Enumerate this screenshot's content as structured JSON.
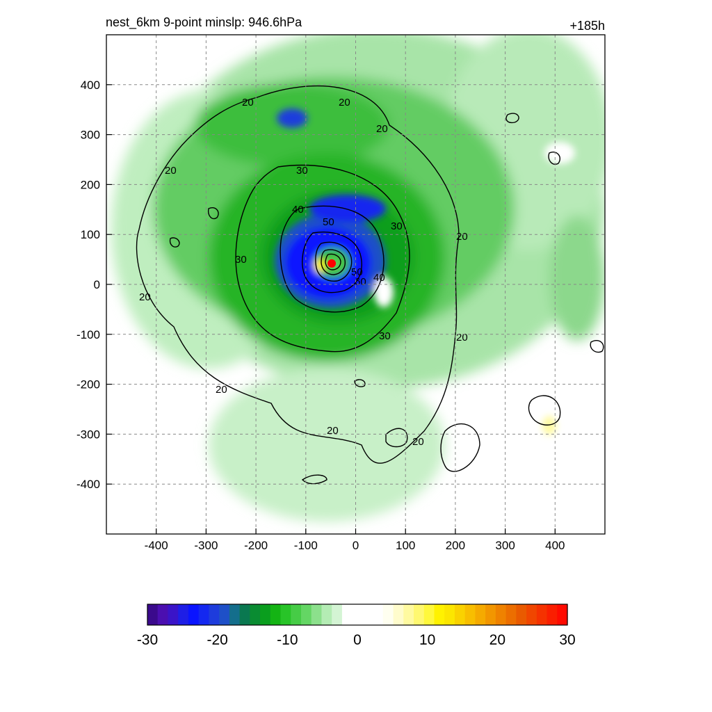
{
  "figure": {
    "title_left": "nest_6km  9-point minslp: 946.6hPa",
    "title_right": "+185h"
  },
  "chart_data": {
    "type": "heatmap",
    "x_ticks": [
      -400,
      -300,
      -200,
      -100,
      0,
      100,
      200,
      300,
      400
    ],
    "y_ticks": [
      400,
      300,
      200,
      100,
      0,
      -100,
      -200,
      -300,
      -400
    ],
    "xlim": [
      -500,
      500
    ],
    "ylim": [
      -500,
      500
    ],
    "grid": true,
    "colorbar": {
      "ticks": [
        -30,
        -20,
        -10,
        0,
        10,
        20,
        30
      ],
      "range": [
        -30,
        30
      ],
      "colors": [
        "#3a0a8c",
        "#4b0fb0",
        "#3a14c8",
        "#1e1ee6",
        "#0a14ff",
        "#1428f0",
        "#1e3cdc",
        "#1e50c8",
        "#146e8c",
        "#0a7850",
        "#0a8c32",
        "#0a9e1e",
        "#14b414",
        "#28c428",
        "#46cc46",
        "#64d664",
        "#8ce08c",
        "#b4ecb4",
        "#d4f4d4",
        "#ffffff",
        "#ffffff",
        "#ffffff",
        "#ffffff",
        "#fffff0",
        "#fffccc",
        "#fffaa0",
        "#fff870",
        "#fff83c",
        "#fff200",
        "#fce600",
        "#fad200",
        "#f8be00",
        "#f5aa00",
        "#f29600",
        "#ef8200",
        "#ec6e00",
        "#e95a00",
        "#f04600",
        "#f53200",
        "#fa1e00",
        "#ff0a00"
      ]
    },
    "contour_labels": [
      "20",
      "20",
      "20",
      "20",
      "20",
      "20",
      "20",
      "20",
      "20",
      "20",
      "30",
      "30",
      "30",
      "30",
      "40",
      "40",
      "50",
      "50",
      "60"
    ],
    "center_marker": {
      "x": -48,
      "y": 42,
      "color": "#ff0000"
    }
  }
}
